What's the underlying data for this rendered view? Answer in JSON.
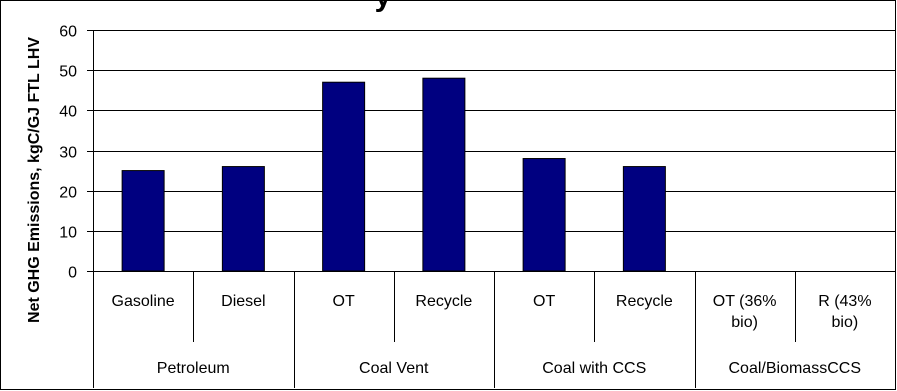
{
  "chart_data": {
    "type": "bar",
    "title": "y",
    "ylabel": "Net GHG Emissions, kgC/GJ FTL LHV",
    "xlabel": "",
    "ylim": [
      0,
      60
    ],
    "yticks": [
      0,
      10,
      20,
      30,
      40,
      50,
      60
    ],
    "grid": "horizontal",
    "legend": "none",
    "bar_color": "#000080",
    "categories": [
      {
        "label_lines": [
          "Gasoline"
        ],
        "value": 25
      },
      {
        "label_lines": [
          "Diesel"
        ],
        "value": 26
      },
      {
        "label_lines": [
          "OT"
        ],
        "value": 47
      },
      {
        "label_lines": [
          "Recycle"
        ],
        "value": 48
      },
      {
        "label_lines": [
          "OT"
        ],
        "value": 28
      },
      {
        "label_lines": [
          "Recycle"
        ],
        "value": 26
      },
      {
        "label_lines": [
          "OT (36%",
          "bio)"
        ],
        "value": null
      },
      {
        "label_lines": [
          "R (43%",
          "bio)"
        ],
        "value": null
      }
    ],
    "groups": [
      {
        "label": "Petroleum",
        "count": 2
      },
      {
        "label": "Coal Vent",
        "count": 2
      },
      {
        "label": "Coal with CCS",
        "count": 2
      },
      {
        "label": "Coal/BiomassCCS",
        "count": 2
      }
    ]
  }
}
